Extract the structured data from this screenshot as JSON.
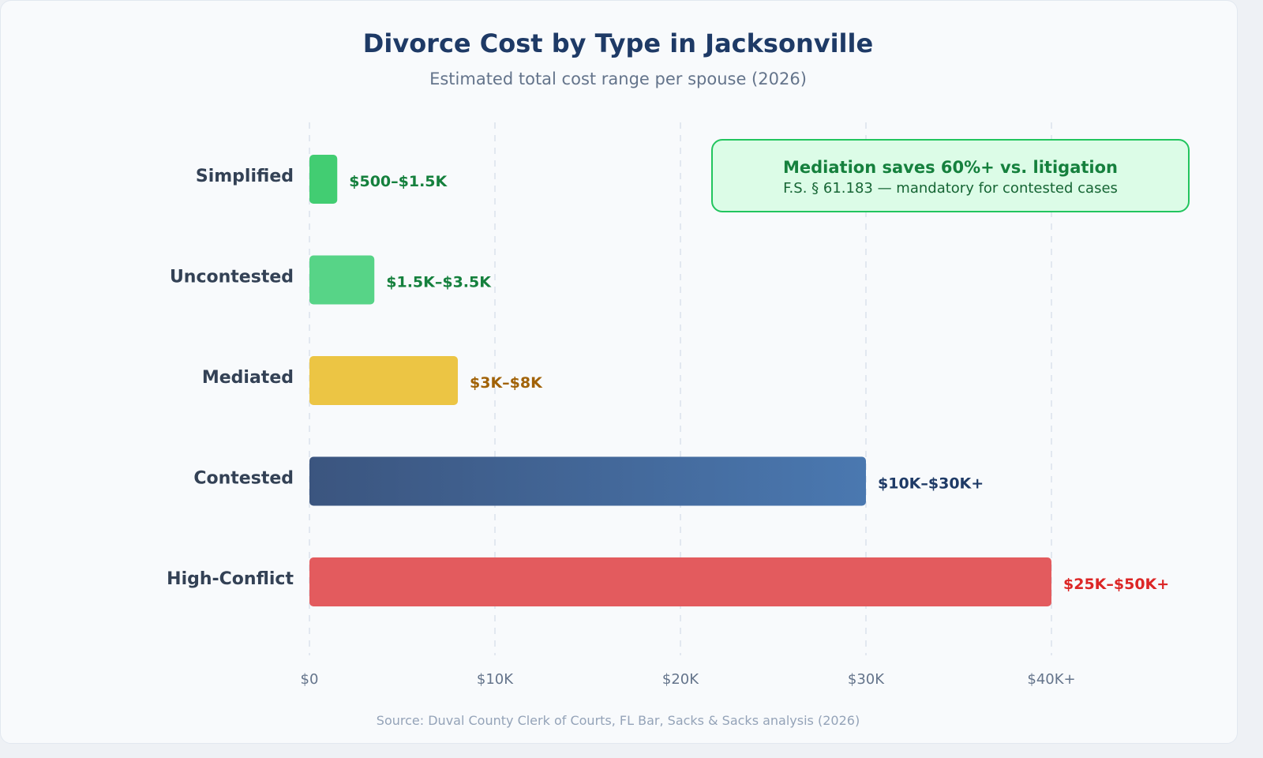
{
  "title": "Divorce Cost by Type in Jacksonville",
  "subtitle": "Estimated total cost range per spouse (2026)",
  "source": "Source: Duval County Clerk of Courts, FL Bar, Sacks & Sacks analysis (2026)",
  "callout": {
    "heading": "Mediation saves 60%+ vs. litigation",
    "text": "F.S. § 61.183 — mandatory for contested cases"
  },
  "chart_data": {
    "type": "bar",
    "orientation": "horizontal",
    "title": "Divorce Cost by Type in Jacksonville",
    "subtitle": "Estimated total cost range per spouse (2026)",
    "categories": [
      "Simplified",
      "Uncontested",
      "Mediated",
      "Contested",
      "High-Conflict"
    ],
    "values": [
      1500,
      3500,
      8000,
      30000,
      40000
    ],
    "data_labels": [
      "$500–$1.5K",
      "$1.5K–$3.5K",
      "$3K–$8K",
      "$10K–$30K+",
      "$25K–$50K+"
    ],
    "bar_colors": [
      "#42cd72",
      "#57d487",
      "#ecc544",
      "#4772aa",
      "#e35b5e"
    ],
    "label_colors": [
      "#15803d",
      "#15803d",
      "#a16207",
      "#1e3a66",
      "#dc2626"
    ],
    "xlim": [
      0,
      40000
    ],
    "x_ticks": [
      0,
      10000,
      20000,
      30000,
      40000
    ],
    "x_tick_labels": [
      "$0",
      "$10K",
      "$20K",
      "$30K",
      "$40K+"
    ],
    "grid": "vertical dashed",
    "legend": "none"
  }
}
